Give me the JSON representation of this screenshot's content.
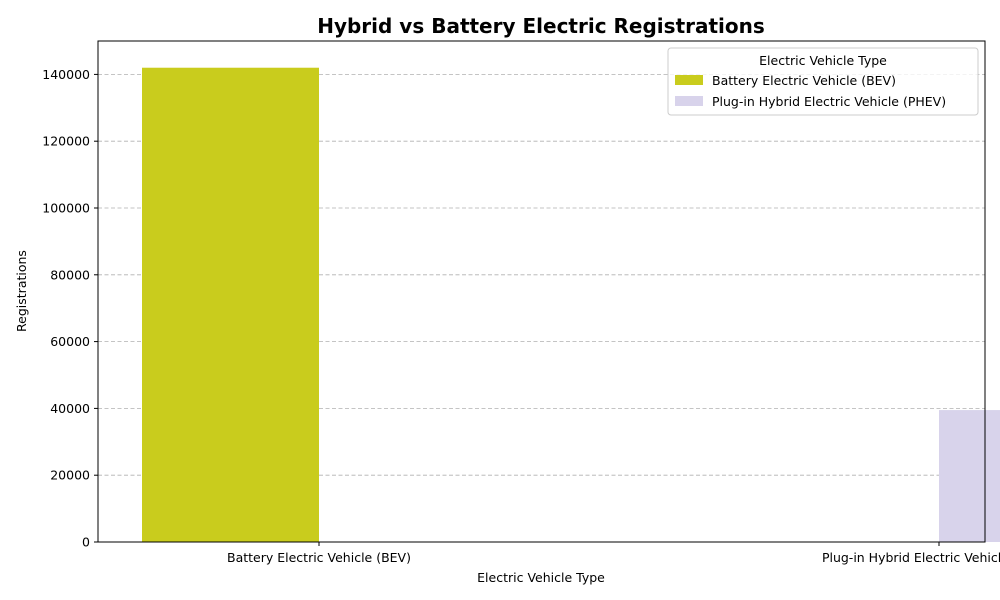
{
  "chart_data": {
    "type": "bar",
    "title": "Hybrid vs Battery Electric Registrations",
    "xlabel": "Electric Vehicle Type",
    "ylabel": "Registrations",
    "categories": [
      "Battery Electric Vehicle (BEV)",
      "Plug-in Hybrid Electric Vehicle (PHEV)"
    ],
    "series": [
      {
        "name": "Battery Electric Vehicle (BEV)",
        "color": "#c9cc1d",
        "values": [
          142000,
          0
        ]
      },
      {
        "name": "Plug-in Hybrid Electric Vehicle (PHEV)",
        "color": "#d8d3eb",
        "values": [
          0,
          39500
        ]
      }
    ],
    "ylim": [
      0,
      150000
    ],
    "yticks": [
      0,
      20000,
      40000,
      60000,
      80000,
      100000,
      120000,
      140000
    ],
    "grid": true,
    "legend": {
      "title": "Electric Vehicle Type",
      "placement": "top-right"
    }
  }
}
